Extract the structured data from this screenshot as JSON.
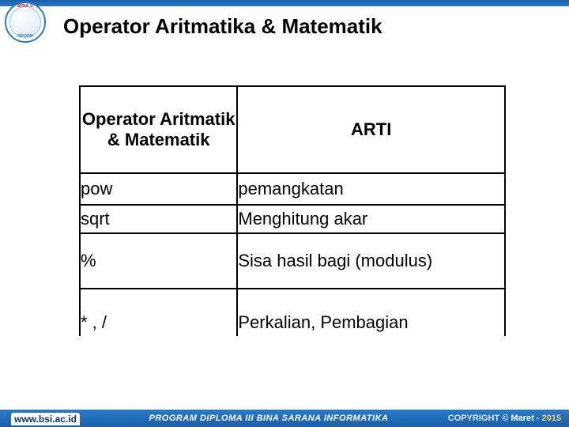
{
  "logo": {
    "line1": "BINA S",
    "line2": "INFORM"
  },
  "title": "Operator Aritmatika & Matematik",
  "table": {
    "headers": {
      "operator": "Operator Aritmatik & Matematik",
      "arti": "ARTI"
    },
    "rows": [
      {
        "op": "pow",
        "arti": "pemangkatan"
      },
      {
        "op": "sqrt",
        "arti": "Menghitung akar"
      },
      {
        "op": "%",
        "arti": "Sisa hasil bagi (modulus)"
      },
      {
        "op": "*   ,   /",
        "arti": "Perkalian, Pembagian"
      }
    ]
  },
  "footer": {
    "url": "www.bsi.ac.id",
    "program": "PROGRAM DIPLOMA III BINA SARANA INFORMATIKA",
    "copyright_word": "COPYRIGHT",
    "copyright_symbol": "©",
    "month": "Maret",
    "year": "2015",
    "sep": " - "
  },
  "colors": {
    "brand_blue_dark": "#1a5fa8",
    "brand_blue": "#2b7ac7",
    "year_yellow": "#ffd24a",
    "text": "#000000",
    "background": "#ffffff"
  }
}
